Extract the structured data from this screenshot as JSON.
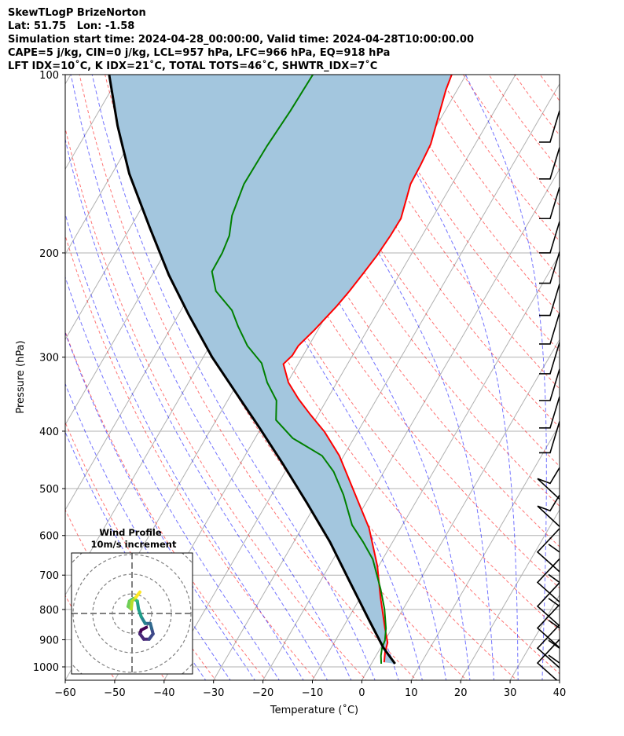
{
  "header": {
    "line1": "SkewTLogP BrizeNorton",
    "line2": "Lat: 51.75   Lon: -1.58",
    "line3": "Simulation start time: 2024-04-28_00:00:00, Valid time: 2024-04-28T10:00:00.00",
    "line4": "CAPE=5 j/kg, CIN=0 j/kg, LCL=957 hPa, LFC=966 hPa, EQ=918 hPa",
    "line5": "LFT IDX=10˚C, K IDX=21˚C, TOTAL TOTS=46˚C, SHWTR_IDX=7˚C"
  },
  "chart_data": {
    "type": "line",
    "subtype": "skew-t log-p",
    "xlabel": "Temperature (˚C)",
    "ylabel": "Pressure (hPa)",
    "xlim": [
      -60,
      40
    ],
    "ylim": [
      1053,
      100
    ],
    "xticks": [
      "−60",
      "−50",
      "−40",
      "−30",
      "−20",
      "−10",
      "0",
      "10",
      "20",
      "30",
      "40"
    ],
    "xtick_values": [
      -60,
      -50,
      -40,
      -30,
      -20,
      -10,
      0,
      10,
      20,
      30,
      40
    ],
    "yticks": [
      "100",
      "200",
      "300",
      "400",
      "500",
      "600",
      "700",
      "800",
      "900",
      "1000"
    ],
    "ytick_values": [
      100,
      200,
      300,
      400,
      500,
      600,
      700,
      800,
      900,
      1000
    ],
    "grid": true,
    "temperature": {
      "color": "#ff0000",
      "pressure": [
        982,
        944,
        910,
        861,
        762,
        675,
        583,
        512,
        440,
        401,
        375,
        353,
        331,
        308,
        298,
        287,
        270,
        246,
        232,
        217,
        202,
        187,
        175,
        153,
        142,
        131,
        106,
        100
      ],
      "value": [
        2.4,
        1.4,
        0.8,
        -1.4,
        -6.0,
        -10.3,
        -16.4,
        -23.1,
        -30.9,
        -36.7,
        -41.6,
        -45.8,
        -49.8,
        -53.0,
        -52.2,
        -52.1,
        -50.7,
        -49.0,
        -48.2,
        -47.5,
        -46.8,
        -46.4,
        -46.3,
        -48.4,
        -48.6,
        -49.0,
        -52.3,
        -52.9
      ]
    },
    "dewpoint": {
      "color": "#008000",
      "pressure": [
        988,
        958,
        929,
        902,
        861,
        798,
        739,
        658,
        615,
        576,
        512,
        468,
        440,
        411,
        383,
        355,
        331,
        307,
        287,
        266,
        250,
        232,
        215,
        200,
        187,
        173,
        153,
        132,
        115,
        100
      ],
      "value": [
        2.0,
        1.0,
        0.3,
        0.0,
        -1.2,
        -3.8,
        -6.9,
        -12.0,
        -16.0,
        -20.2,
        -25.5,
        -30.2,
        -34.4,
        -42.4,
        -47.9,
        -50.1,
        -54.1,
        -57.5,
        -62.4,
        -66.6,
        -69.7,
        -75.2,
        -78.3,
        -78.4,
        -79.0,
        -80.8,
        -82.1,
        -81.9,
        -81.3,
        -81.0
      ]
    },
    "parcel": {
      "color": "#000000",
      "pressure": [
        988,
        929,
        835,
        717,
        615,
        528,
        454,
        395,
        344,
        300,
        254,
        218,
        181,
        147,
        122,
        100
      ],
      "value": [
        4.8,
        0.6,
        -5.5,
        -14.1,
        -22.7,
        -32.0,
        -41.4,
        -50.3,
        -59.3,
        -68.2,
        -78.0,
        -86.6,
        -96.1,
        -106.5,
        -114.5,
        -122.2
      ]
    },
    "shading_color": "#a3c6de",
    "wind_barbs_pressure": [
      130,
      150,
      175,
      200,
      225,
      255,
      285,
      320,
      355,
      395,
      435,
      490,
      545,
      640,
      720,
      790,
      860,
      930,
      985
    ],
    "hodograph": {
      "title_line1": "Wind Profile",
      "title_line2": "10m/s increment",
      "ring_increment_ms": 10,
      "u": [
        7.3,
        4.7,
        4.0,
        6.0,
        8.7,
        10.7,
        10.0,
        9.3,
        6.7,
        4.7,
        3.3,
        2.7,
        0.7,
        -1.3,
        -2.0,
        -0.4,
        0.0,
        2.0,
        4.0
      ],
      "v": [
        -7.1,
        -8.4,
        -10.4,
        -13.1,
        -13.1,
        -10.4,
        -7.7,
        -5.1,
        -5.1,
        -1.7,
        2.3,
        6.3,
        7.6,
        6.3,
        3.6,
        2.3,
        6.3,
        8.3,
        10.9
      ]
    }
  }
}
